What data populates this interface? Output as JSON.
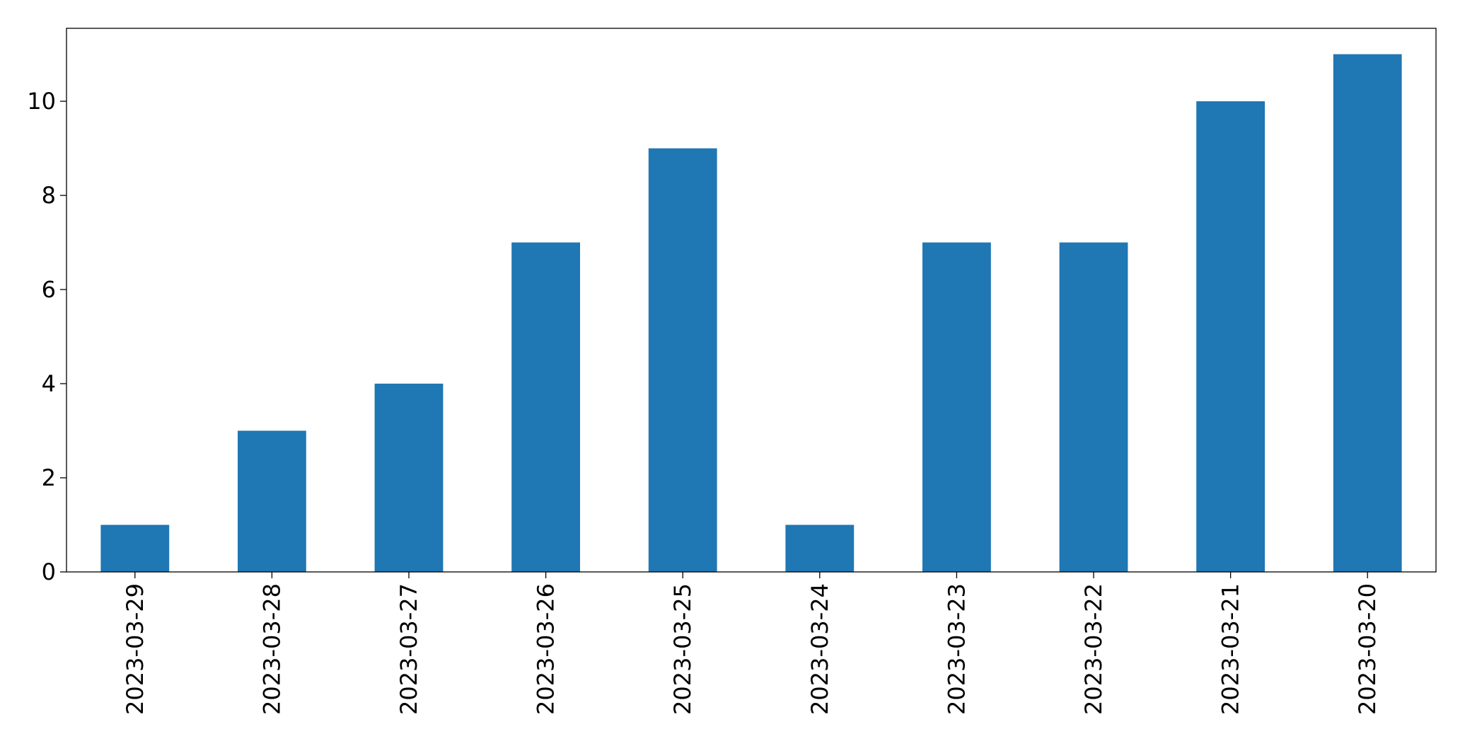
{
  "chart_data": {
    "type": "bar",
    "categories": [
      "2023-03-29",
      "2023-03-28",
      "2023-03-27",
      "2023-03-26",
      "2023-03-25",
      "2023-03-24",
      "2023-03-23",
      "2023-03-22",
      "2023-03-21",
      "2023-03-20"
    ],
    "values": [
      1,
      3,
      4,
      7,
      9,
      1,
      7,
      7,
      10,
      11
    ],
    "color": "#1f77b4",
    "ylim": [
      0,
      11.55
    ],
    "yticks": [
      0,
      2,
      4,
      6,
      8,
      10
    ],
    "grid": false
  }
}
